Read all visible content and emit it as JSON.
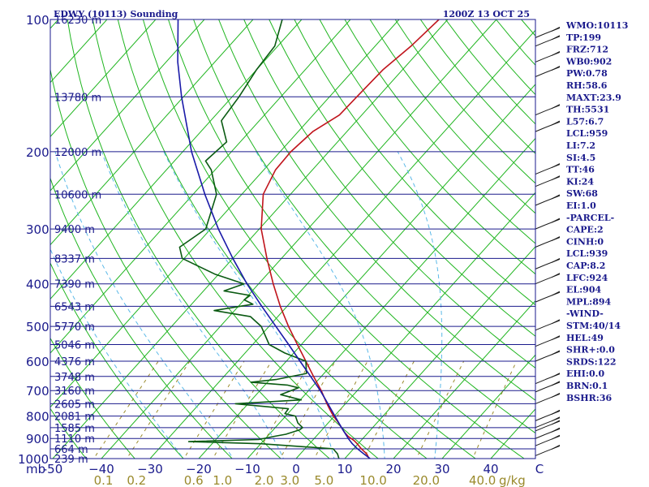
{
  "header": {
    "title": "EDWY (10113) Sounding",
    "time": "1200Z 13 OCT 25"
  },
  "indices": [
    "WMO:10113",
    "TP:199",
    "FRZ:712",
    "WB0:902",
    "PW:0.78",
    "RH:58.6",
    "MAXT:23.9",
    "TH:5531",
    "L57:6.7",
    "LCL:959",
    "LI:7.2",
    "SI:4.5",
    "TT:46",
    "KI:24",
    "SW:68",
    "EI:1.0",
    "-PARCEL-",
    "CAPE:2",
    "CINH:0",
    "LCL:939",
    "CAP:8.2",
    "LFC:924",
    "EL:904",
    "MPL:894",
    "-WIND-",
    "STM:40/14",
    "HEL:49",
    "SHR+:0.0",
    "SRDS:122",
    "EHI:0.0",
    "BRN:0.1",
    "BSHR:36"
  ],
  "colors": {
    "isobar": "#1a1a8c",
    "isotherm": "#1fb51f",
    "dry_adiabat": "#1fb51f",
    "moist_adiabat": "#59b8e8",
    "mixing_ratio": "#9a8a2c",
    "temperature": "#c0141c",
    "dewpoint": "#0a5a12",
    "parcel": "#1a1aa8",
    "wind_barb": "#1a1a1a"
  },
  "chart_data": {
    "type": "line",
    "title": "EDWY (10113) Sounding",
    "valid_time": "1200Z 13 OCT 25",
    "x_unit": "°C",
    "y_unit": "mb",
    "pressure_range": [
      1000,
      100
    ],
    "temperature_range": [
      -50,
      50
    ],
    "pressure_ticks": [
      {
        "p": 100,
        "label": "100"
      },
      {
        "p": 200,
        "label": "200"
      },
      {
        "p": 300,
        "label": "300"
      },
      {
        "p": 400,
        "label": "400"
      },
      {
        "p": 500,
        "label": "500"
      },
      {
        "p": 600,
        "label": "600"
      },
      {
        "p": 700,
        "label": "700"
      },
      {
        "p": 800,
        "label": "800"
      },
      {
        "p": 900,
        "label": "900"
      },
      {
        "p": 1000,
        "label": "1000"
      }
    ],
    "height_labels": [
      {
        "p": 100,
        "label": "16230 m"
      },
      {
        "p": 150,
        "label": "13780 m"
      },
      {
        "p": 200,
        "label": "12000 m"
      },
      {
        "p": 250,
        "label": "10600 m"
      },
      {
        "p": 300,
        "label": "9400 m"
      },
      {
        "p": 350,
        "label": "8337 m"
      },
      {
        "p": 400,
        "label": "7390 m"
      },
      {
        "p": 450,
        "label": "6543 m"
      },
      {
        "p": 500,
        "label": "5770 m"
      },
      {
        "p": 550,
        "label": "5046 m"
      },
      {
        "p": 600,
        "label": "4376 m"
      },
      {
        "p": 650,
        "label": "3748 m"
      },
      {
        "p": 700,
        "label": "3160 m"
      },
      {
        "p": 750,
        "label": "2605 m"
      },
      {
        "p": 800,
        "label": "2081 m"
      },
      {
        "p": 850,
        "label": "1585 m"
      },
      {
        "p": 900,
        "label": "1110 m"
      },
      {
        "p": 950,
        "label": "664 m"
      },
      {
        "p": 1000,
        "label": "239 m"
      }
    ],
    "pressure_unit_label": "mb",
    "temperature_ticks": [
      {
        "t": -50,
        "label": "-50"
      },
      {
        "t": -40,
        "label": "−40"
      },
      {
        "t": -30,
        "label": "−30"
      },
      {
        "t": -20,
        "label": "−20"
      },
      {
        "t": -10,
        "label": "−10"
      },
      {
        "t": 0,
        "label": "0"
      },
      {
        "t": 10,
        "label": "10"
      },
      {
        "t": 20,
        "label": "20"
      },
      {
        "t": 30,
        "label": "30"
      },
      {
        "t": 40,
        "label": "40"
      },
      {
        "t": 50,
        "label": "C"
      }
    ],
    "mixing_ratio_labels": [
      "0.1",
      "0.2",
      "0.6",
      "1.0",
      "2.0",
      "3.0",
      "5.0",
      "10.0",
      "20.0",
      "40.0"
    ],
    "mixing_ratio_unit": "g/kg",
    "mixing_ratio_lines": [
      0.1,
      0.2,
      0.6,
      1.0,
      2.0,
      3.0,
      5.0,
      10.0,
      20.0,
      40.0
    ],
    "series": [
      {
        "key": "temperature",
        "points": [
          [
            1000,
            15.0
          ],
          [
            975,
            13.6
          ],
          [
            950,
            11.6
          ],
          [
            925,
            9.8
          ],
          [
            910,
            8.6
          ],
          [
            890,
            6.6
          ],
          [
            870,
            5.0
          ],
          [
            850,
            3.6
          ],
          [
            825,
            1.8
          ],
          [
            800,
            -0.2
          ],
          [
            775,
            -2.0
          ],
          [
            750,
            -3.8
          ],
          [
            700,
            -7.4
          ],
          [
            650,
            -11.6
          ],
          [
            600,
            -16.0
          ],
          [
            550,
            -20.8
          ],
          [
            500,
            -26.0
          ],
          [
            450,
            -31.4
          ],
          [
            400,
            -37.0
          ],
          [
            350,
            -43.0
          ],
          [
            300,
            -49.6
          ],
          [
            250,
            -55.6
          ],
          [
            220,
            -57.6
          ],
          [
            200,
            -57.8
          ],
          [
            180,
            -57.0
          ],
          [
            165,
            -54.6
          ],
          [
            150,
            -54.4
          ],
          [
            130,
            -54.0
          ],
          [
            115,
            -52.6
          ],
          [
            100,
            -51.8
          ]
        ]
      },
      {
        "key": "dewpoint",
        "points": [
          [
            1000,
            8.8
          ],
          [
            975,
            7.6
          ],
          [
            950,
            5.8
          ],
          [
            925,
            -10.0
          ],
          [
            915,
            -25.2
          ],
          [
            905,
            -11.2
          ],
          [
            890,
            -8.6
          ],
          [
            880,
            -6.6
          ],
          [
            860,
            -4.6
          ],
          [
            850,
            -4.4
          ],
          [
            830,
            -6.2
          ],
          [
            800,
            -8.0
          ],
          [
            790,
            -10.6
          ],
          [
            770,
            -10.8
          ],
          [
            750,
            -22.6
          ],
          [
            735,
            -9.8
          ],
          [
            715,
            -15.0
          ],
          [
            700,
            -13.6
          ],
          [
            690,
            -12.6
          ],
          [
            680,
            -15.4
          ],
          [
            670,
            -23.4
          ],
          [
            660,
            -18.6
          ],
          [
            640,
            -13.6
          ],
          [
            600,
            -16.0
          ],
          [
            575,
            -21.8
          ],
          [
            550,
            -26.6
          ],
          [
            500,
            -31.6
          ],
          [
            475,
            -35.6
          ],
          [
            460,
            -44.2
          ],
          [
            445,
            -37.4
          ],
          [
            435,
            -40.0
          ],
          [
            425,
            -39.6
          ],
          [
            415,
            -45.8
          ],
          [
            400,
            -43.0
          ],
          [
            380,
            -50.8
          ],
          [
            350,
            -60.4
          ],
          [
            330,
            -63.0
          ],
          [
            300,
            -61.0
          ],
          [
            250,
            -65.2
          ],
          [
            220,
            -70.8
          ],
          [
            210,
            -73.6
          ],
          [
            190,
            -72.8
          ],
          [
            170,
            -77.8
          ],
          [
            150,
            -78.6
          ],
          [
            130,
            -80.0
          ],
          [
            115,
            -80.6
          ],
          [
            100,
            -84.0
          ]
        ]
      },
      {
        "key": "parcel",
        "points": [
          [
            1000,
            15.2
          ],
          [
            975,
            13.0
          ],
          [
            950,
            10.8
          ],
          [
            925,
            8.8
          ],
          [
            900,
            7.0
          ],
          [
            850,
            3.6
          ],
          [
            800,
            0.1
          ],
          [
            750,
            -3.6
          ],
          [
            700,
            -7.6
          ],
          [
            650,
            -12.2
          ],
          [
            600,
            -17.2
          ],
          [
            550,
            -22.6
          ],
          [
            500,
            -28.6
          ],
          [
            450,
            -35.2
          ],
          [
            400,
            -42.4
          ],
          [
            350,
            -50.0
          ],
          [
            300,
            -58.4
          ],
          [
            250,
            -67.6
          ],
          [
            200,
            -78.2
          ],
          [
            150,
            -90.4
          ],
          [
            125,
            -97.6
          ],
          [
            100,
            -105.4
          ]
        ]
      }
    ],
    "wind_levels_mb": [
      985,
      935,
      900,
      865,
      850,
      820,
      750,
      705,
      675,
      600,
      555,
      510,
      440,
      400,
      370,
      330,
      300,
      265,
      240,
      225,
      180,
      165,
      135,
      125,
      115,
      110
    ],
    "wind_barb_style": "staff pointing toward the direction the wind blows from; each long feather = 10 kt"
  }
}
